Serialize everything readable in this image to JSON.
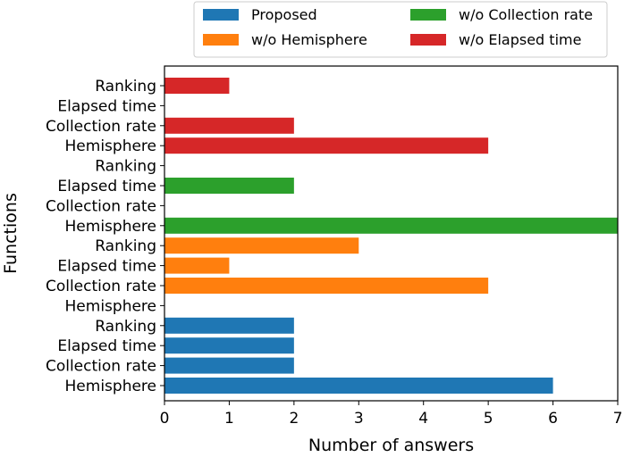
{
  "chart_data": {
    "type": "bar",
    "orientation": "horizontal",
    "title": "",
    "xlabel": "Number of answers",
    "ylabel": "Functions",
    "xlim": [
      0,
      7
    ],
    "xticks": [
      "0",
      "1",
      "2",
      "3",
      "4",
      "5",
      "6",
      "7"
    ],
    "grid": false,
    "legend_position": "top",
    "groups": [
      {
        "name": "Proposed",
        "color": "#1f77b4",
        "categories": [
          "Hemisphere",
          "Collection rate",
          "Elapsed time",
          "Ranking"
        ],
        "values": [
          6,
          2,
          2,
          2
        ]
      },
      {
        "name": "w/o Hemisphere",
        "color": "#ff7f0e",
        "categories": [
          "Hemisphere",
          "Collection rate",
          "Elapsed time",
          "Ranking"
        ],
        "values": [
          0,
          5,
          1,
          3
        ]
      },
      {
        "name": "w/o Collection rate",
        "color": "#2ca02c",
        "categories": [
          "Hemisphere",
          "Collection rate",
          "Elapsed time",
          "Ranking"
        ],
        "values": [
          7,
          0,
          2,
          0
        ]
      },
      {
        "name": "w/o Elapsed time",
        "color": "#d62728",
        "categories": [
          "Hemisphere",
          "Collection rate",
          "Elapsed time",
          "Ranking"
        ],
        "values": [
          5,
          2,
          0,
          1
        ]
      }
    ]
  }
}
